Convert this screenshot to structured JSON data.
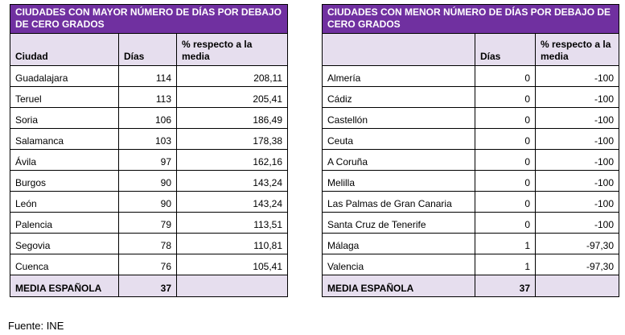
{
  "left_table": {
    "title": "CIUDADES CON MAYOR NÚMERO DE DÍAS POR DEBAJO DE CERO GRADOS",
    "headers": [
      "Ciudad",
      "Días",
      "% respecto a la media"
    ],
    "rows": [
      [
        "Guadalajara",
        "114",
        "208,11"
      ],
      [
        "Teruel",
        "113",
        "205,41"
      ],
      [
        "Soria",
        "106",
        "186,49"
      ],
      [
        "Salamanca",
        "103",
        "178,38"
      ],
      [
        "Ávila",
        "97",
        "162,16"
      ],
      [
        "Burgos",
        "90",
        "143,24"
      ],
      [
        "León",
        "90",
        "143,24"
      ],
      [
        "Palencia",
        "79",
        "113,51"
      ],
      [
        "Segovia",
        "78",
        "110,81"
      ],
      [
        "Cuenca",
        "76",
        "105,41"
      ]
    ],
    "footer": [
      "MEDIA ESPAÑOLA",
      "37",
      ""
    ]
  },
  "right_table": {
    "title": "CIUDADES CON MENOR NÚMERO DE DÍAS POR DEBAJO DE CERO GRADOS",
    "headers": [
      "",
      "Días",
      "% respecto a la media"
    ],
    "rows": [
      [
        "Almería",
        "0",
        "-100"
      ],
      [
        "Cádiz",
        "0",
        "-100"
      ],
      [
        "Castellón",
        "0",
        "-100"
      ],
      [
        "Ceuta",
        "0",
        "-100"
      ],
      [
        "A Coruña",
        "0",
        "-100"
      ],
      [
        "Melilla",
        "0",
        "-100"
      ],
      [
        "Las Palmas de Gran Canaria",
        "0",
        "-100"
      ],
      [
        "Santa Cruz de Tenerife",
        "0",
        "-100"
      ],
      [
        "Málaga",
        "1",
        "-97,30"
      ],
      [
        "Valencia",
        "1",
        "-97,30"
      ]
    ],
    "footer": [
      "MEDIA ESPAÑOLA",
      "37",
      ""
    ]
  },
  "source": "Fuente: INE",
  "colors": {
    "title_bg": "#7030A0",
    "header_bg": "#e6deee"
  }
}
